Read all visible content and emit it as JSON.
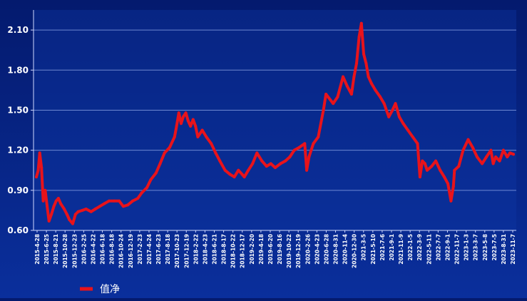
{
  "chart_data": {
    "type": "line",
    "title": "",
    "xlabel": "",
    "ylabel": "",
    "ylim": [
      0.6,
      2.25
    ],
    "yticks": [
      0.6,
      0.9,
      1.2,
      1.5,
      1.8,
      2.1
    ],
    "ytick_labels": [
      "0.60",
      "0.90",
      "1.20",
      "1.50",
      "1.80",
      "2.10"
    ],
    "grid": true,
    "legend_position": "bottom-left",
    "x_tick_labels": [
      "2015-4-28",
      "2015-6-25",
      "2015-8-21",
      "2015-10-28",
      "2015-12-23",
      "2016-2-25",
      "2016-4-22",
      "2016-6-18",
      "2016-8-18",
      "2016-10-24",
      "2016-12-19",
      "2017-2-23",
      "2017-4-24",
      "2017-6-23",
      "2017-8-18",
      "2017-10-23",
      "2017-12-19",
      "2018-2-22",
      "2018-4-23",
      "2018-6-21",
      "2018-8-17",
      "2018-10-22",
      "2018-12-17",
      "2019-2-20",
      "2019-4-18",
      "2019-6-20",
      "2019-8-16",
      "2019-10-22",
      "2019-12-19",
      "2020-2-26",
      "2020-4-23",
      "2020-6-28",
      "2020-8-31",
      "2020-11-4",
      "2020-12-30",
      "2021-3-5",
      "2021-5-10",
      "2021-7-6",
      "2021-9-1",
      "2021-11-9",
      "2022-1-5",
      "2022-3-9",
      "2022-5-11",
      "2022-7-7",
      "2022-9-1",
      "2022-11-7",
      "2023-1-3",
      "2023-3-7",
      "2023-5-8",
      "2023-7-5",
      "2023-8-31",
      "2023-11-7"
    ],
    "series": [
      {
        "name": "值净",
        "color": "#e8131b",
        "x": [
          "2015-4-28",
          "2015-5-10",
          "2015-5-20",
          "2015-6-1",
          "2015-6-12",
          "2015-6-25",
          "2015-7-8",
          "2015-7-20",
          "2015-8-5",
          "2015-8-21",
          "2015-9-5",
          "2015-9-20",
          "2015-10-5",
          "2015-10-28",
          "2015-11-15",
          "2015-12-1",
          "2015-12-23",
          "2016-1-10",
          "2016-1-28",
          "2016-2-25",
          "2016-3-20",
          "2016-4-22",
          "2016-5-20",
          "2016-6-18",
          "2016-7-18",
          "2016-8-18",
          "2016-9-20",
          "2016-10-24",
          "2016-11-20",
          "2016-12-19",
          "2017-1-20",
          "2017-2-23",
          "2017-3-20",
          "2017-4-24",
          "2017-5-20",
          "2017-6-23",
          "2017-7-20",
          "2017-8-18",
          "2017-9-20",
          "2017-10-23",
          "2017-11-5",
          "2017-11-20",
          "2017-12-5",
          "2017-12-19",
          "2018-1-5",
          "2018-1-20",
          "2018-2-5",
          "2018-2-22",
          "2018-3-10",
          "2018-3-25",
          "2018-4-23",
          "2018-5-20",
          "2018-6-21",
          "2018-7-20",
          "2018-8-17",
          "2018-9-20",
          "2018-10-22",
          "2018-11-20",
          "2018-12-17",
          "2019-1-10",
          "2019-1-25",
          "2019-2-20",
          "2019-3-20",
          "2019-4-18",
          "2019-5-20",
          "2019-6-20",
          "2019-7-18",
          "2019-8-16",
          "2019-9-20",
          "2019-10-22",
          "2019-11-20",
          "2019-12-19",
          "2020-1-20",
          "2020-2-26",
          "2020-3-10",
          "2020-3-25",
          "2020-4-23",
          "2020-5-25",
          "2020-6-28",
          "2020-7-15",
          "2020-8-31",
          "2020-9-30",
          "2020-11-4",
          "2020-12-1",
          "2020-12-30",
          "2021-1-15",
          "2021-2-1",
          "2021-2-18",
          "2021-3-5",
          "2021-3-20",
          "2021-4-5",
          "2021-4-20",
          "2021-5-10",
          "2021-6-5",
          "2021-7-6",
          "2021-8-1",
          "2021-9-1",
          "2021-9-25",
          "2021-10-15",
          "2021-11-9",
          "2021-12-5",
          "2022-1-5",
          "2022-2-5",
          "2022-3-9",
          "2022-3-25",
          "2022-4-10",
          "2022-4-27",
          "2022-5-11",
          "2022-6-10",
          "2022-7-7",
          "2022-8-5",
          "2022-9-1",
          "2022-9-25",
          "2022-10-15",
          "2022-10-31",
          "2022-11-7",
          "2022-12-5",
          "2023-1-3",
          "2023-2-5",
          "2023-3-7",
          "2023-4-5",
          "2023-5-8",
          "2023-6-5",
          "2023-7-5",
          "2023-7-20",
          "2023-8-5",
          "2023-8-31",
          "2023-9-25",
          "2023-10-20",
          "2023-11-7",
          "2023-11-30"
        ],
        "values": [
          1.0,
          1.05,
          1.18,
          1.07,
          0.82,
          0.9,
          0.78,
          0.67,
          0.72,
          0.78,
          0.82,
          0.84,
          0.8,
          0.76,
          0.72,
          0.68,
          0.65,
          0.72,
          0.74,
          0.75,
          0.76,
          0.74,
          0.76,
          0.78,
          0.8,
          0.82,
          0.82,
          0.82,
          0.78,
          0.79,
          0.82,
          0.84,
          0.88,
          0.92,
          0.98,
          1.03,
          1.1,
          1.18,
          1.22,
          1.3,
          1.38,
          1.48,
          1.4,
          1.45,
          1.48,
          1.42,
          1.38,
          1.43,
          1.38,
          1.3,
          1.35,
          1.3,
          1.25,
          1.18,
          1.12,
          1.05,
          1.02,
          1.0,
          1.05,
          1.02,
          1.0,
          1.05,
          1.1,
          1.18,
          1.12,
          1.08,
          1.1,
          1.07,
          1.1,
          1.12,
          1.15,
          1.2,
          1.22,
          1.25,
          1.05,
          1.15,
          1.25,
          1.3,
          1.5,
          1.62,
          1.55,
          1.6,
          1.75,
          1.68,
          1.62,
          1.75,
          1.85,
          2.05,
          2.15,
          1.92,
          1.85,
          1.75,
          1.7,
          1.65,
          1.6,
          1.55,
          1.45,
          1.5,
          1.55,
          1.45,
          1.4,
          1.35,
          1.3,
          1.25,
          1.0,
          1.12,
          1.1,
          1.05,
          1.08,
          1.12,
          1.05,
          1.0,
          0.95,
          0.82,
          0.93,
          1.05,
          1.08,
          1.2,
          1.28,
          1.22,
          1.15,
          1.1,
          1.15,
          1.2,
          1.1,
          1.15,
          1.12,
          1.2,
          1.15,
          1.18,
          1.17
        ]
      }
    ]
  }
}
